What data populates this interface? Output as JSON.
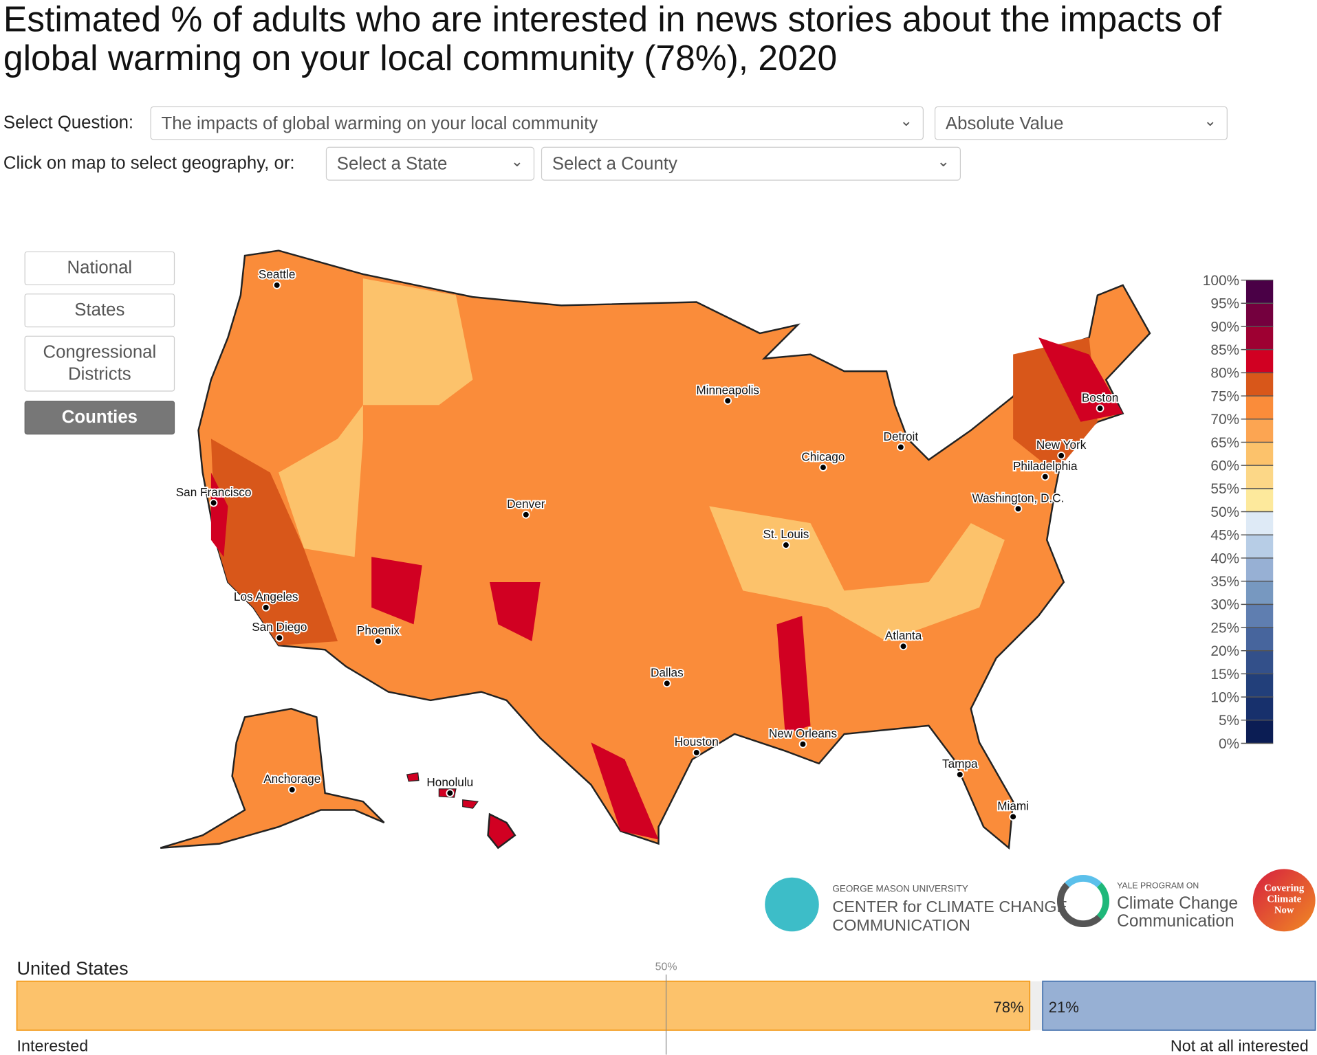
{
  "title": "Estimated % of adults who are interested in news stories about the impacts of global warming on your local community (78%), 2020",
  "controls": {
    "question_label": "Select Question:",
    "question_value": "The impacts of global warming on your local community",
    "measure_value": "Absolute Value",
    "geo_label": "Click on map to select geography, or:",
    "state_placeholder": "Select a State",
    "county_placeholder": "Select a County"
  },
  "geo_buttons": [
    {
      "label": "National"
    },
    {
      "label": "States"
    },
    {
      "label": "Congressional Districts"
    },
    {
      "label": "Counties",
      "active": true
    }
  ],
  "chart_data": {
    "type": "choropleth",
    "title": "Estimated % of adults who are interested in news stories about the impacts of global warming on your local community (78%), 2020",
    "legend": {
      "ticks": [
        "100%",
        "95%",
        "90%",
        "85%",
        "80%",
        "75%",
        "70%",
        "65%",
        "60%",
        "55%",
        "50%",
        "45%",
        "40%",
        "35%",
        "30%",
        "25%",
        "20%",
        "15%",
        "10%",
        "5%",
        "0%"
      ],
      "colors": [
        "#4a0046",
        "#74003e",
        "#9e0032",
        "#d10022",
        "#d8571a",
        "#fa8c3a",
        "#fca552",
        "#fcc26b",
        "#fcd787",
        "#fde99c",
        "#deeaf6",
        "#b7cde6",
        "#97b0d4",
        "#7798c0",
        "#5f7eb0",
        "#47659d",
        "#33508a",
        "#223f7a",
        "#17306c",
        "#0b1d54"
      ]
    },
    "national": {
      "region": "United States",
      "interested": 78,
      "not_interested": 21,
      "midpoint_label": "50%",
      "left_label": "Interested",
      "right_label": "Not at all interested"
    },
    "cities": [
      "Seattle",
      "San Francisco",
      "Los Angeles",
      "San Diego",
      "Phoenix",
      "Denver",
      "Dallas",
      "Houston",
      "Minneapolis",
      "Chicago",
      "St. Louis",
      "Detroit",
      "Atlanta",
      "New Orleans",
      "Tampa",
      "Miami",
      "Washington, D.C.",
      "Philadelphia",
      "New York",
      "Boston",
      "Anchorage",
      "Honolulu"
    ]
  },
  "logos": {
    "gmu_small": "GEORGE MASON UNIVERSITY",
    "gmu_main": "CENTER for CLIMATE CHANGE",
    "gmu_sub": "COMMUNICATION",
    "yale_small": "YALE PROGRAM ON",
    "yale_main": "Climate Change",
    "yale_sub": "Communication",
    "ccn": "Covering Climate Now"
  }
}
